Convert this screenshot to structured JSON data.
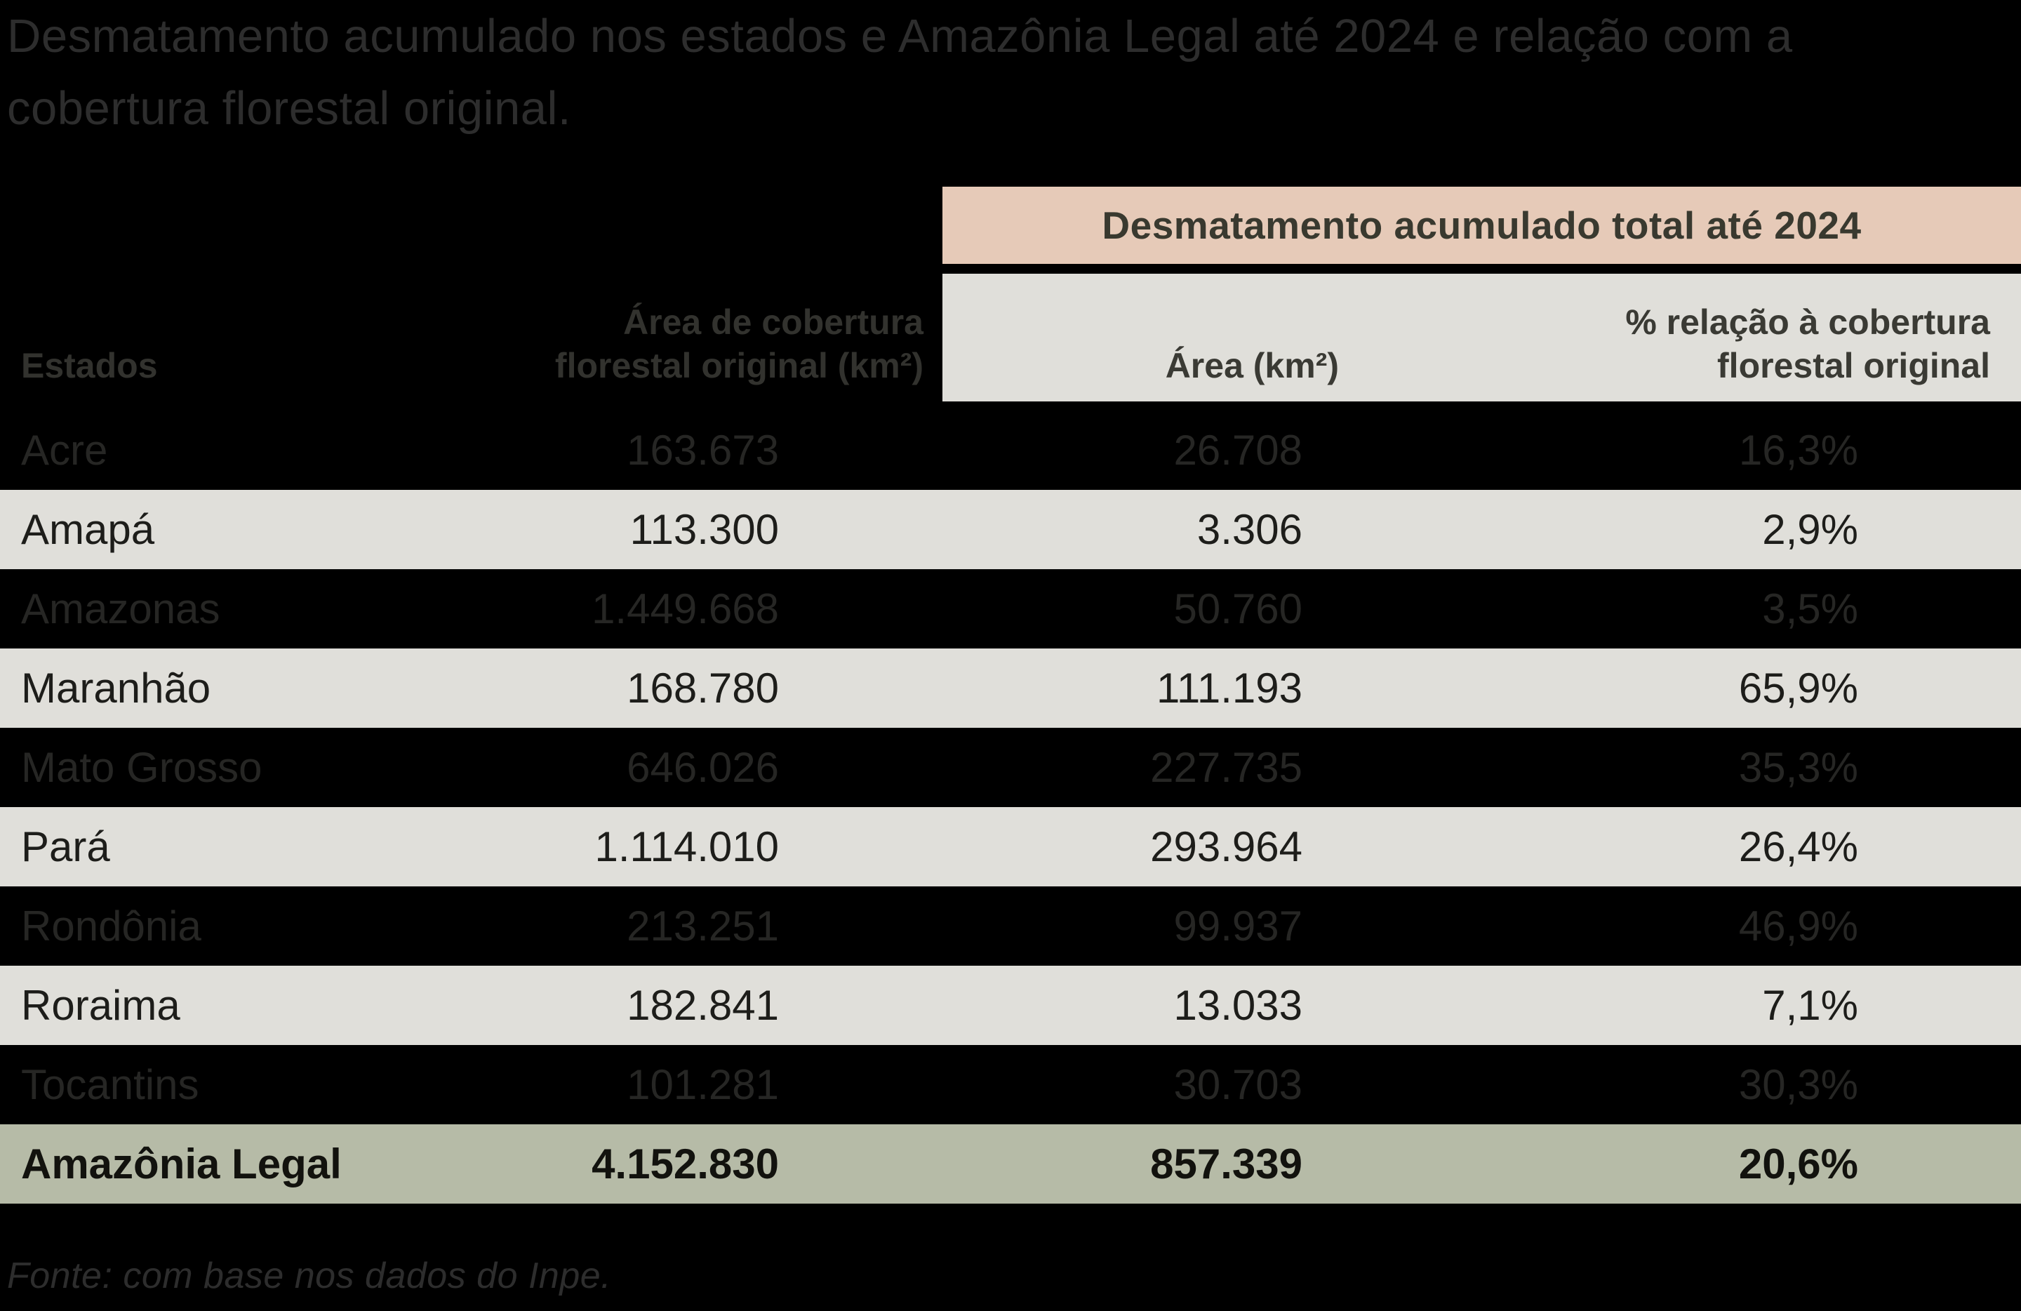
{
  "title": "Desmatamento acumulado nos estados e Amazônia Legal até 2024 e relação com a\ncobertura florestal original.",
  "source": "Fonte: com base nos dados do Inpe.",
  "colors": {
    "background": "#000000",
    "band_pink": "#e6cab8",
    "row_light": "#e0dfda",
    "row_total_green": "#b6bba7",
    "title_text": "#2d2d2d"
  },
  "table": {
    "group_header": "Desmatamento acumulado total até 2024",
    "headers": {
      "estados": "Estados",
      "cobertura_original": "Área de cobertura\nflorestal original (km²)",
      "area": "Área (km²)",
      "pct": "% relação à cobertura\nflorestal original"
    },
    "rows": [
      {
        "state": "Acre",
        "original": "163.673",
        "area": "26.708",
        "pct": "16,3%"
      },
      {
        "state": "Amapá",
        "original": "113.300",
        "area": "3.306",
        "pct": "2,9%"
      },
      {
        "state": "Amazonas",
        "original": "1.449.668",
        "area": "50.760",
        "pct": "3,5%"
      },
      {
        "state": "Maranhão",
        "original": "168.780",
        "area": "111.193",
        "pct": "65,9%"
      },
      {
        "state": "Mato Grosso",
        "original": "646.026",
        "area": "227.735",
        "pct": "35,3%"
      },
      {
        "state": "Pará",
        "original": "1.114.010",
        "area": "293.964",
        "pct": "26,4%"
      },
      {
        "state": "Rondônia",
        "original": "213.251",
        "area": "99.937",
        "pct": "46,9%"
      },
      {
        "state": "Roraima",
        "original": "182.841",
        "area": "13.033",
        "pct": "7,1%"
      },
      {
        "state": "Tocantins",
        "original": "101.281",
        "area": "30.703",
        "pct": "30,3%"
      }
    ],
    "total_row": {
      "state": "Amazônia Legal",
      "original": "4.152.830",
      "area": "857.339",
      "pct": "20,6%"
    }
  },
  "chart_data": {
    "type": "table",
    "title": "Desmatamento acumulado nos estados e Amazônia Legal até 2024 e relação com a cobertura florestal original.",
    "group_header": "Desmatamento acumulado total até 2024",
    "columns": [
      "Estados",
      "Área de cobertura florestal original (km²)",
      "Área (km²)",
      "% relação à cobertura florestal original"
    ],
    "rows": [
      [
        "Acre",
        163673,
        26708,
        16.3
      ],
      [
        "Amapá",
        113300,
        3306,
        2.9
      ],
      [
        "Amazonas",
        1449668,
        50760,
        3.5
      ],
      [
        "Maranhão",
        168780,
        111193,
        65.9
      ],
      [
        "Mato Grosso",
        646026,
        227735,
        35.3
      ],
      [
        "Pará",
        1114010,
        293964,
        26.4
      ],
      [
        "Rondônia",
        213251,
        99937,
        46.9
      ],
      [
        "Roraima",
        182841,
        13033,
        7.1
      ],
      [
        "Tocantins",
        101281,
        30703,
        30.3
      ]
    ],
    "total": [
      "Amazônia Legal",
      4152830,
      857339,
      20.6
    ],
    "source": "Fonte: com base nos dados do Inpe."
  }
}
